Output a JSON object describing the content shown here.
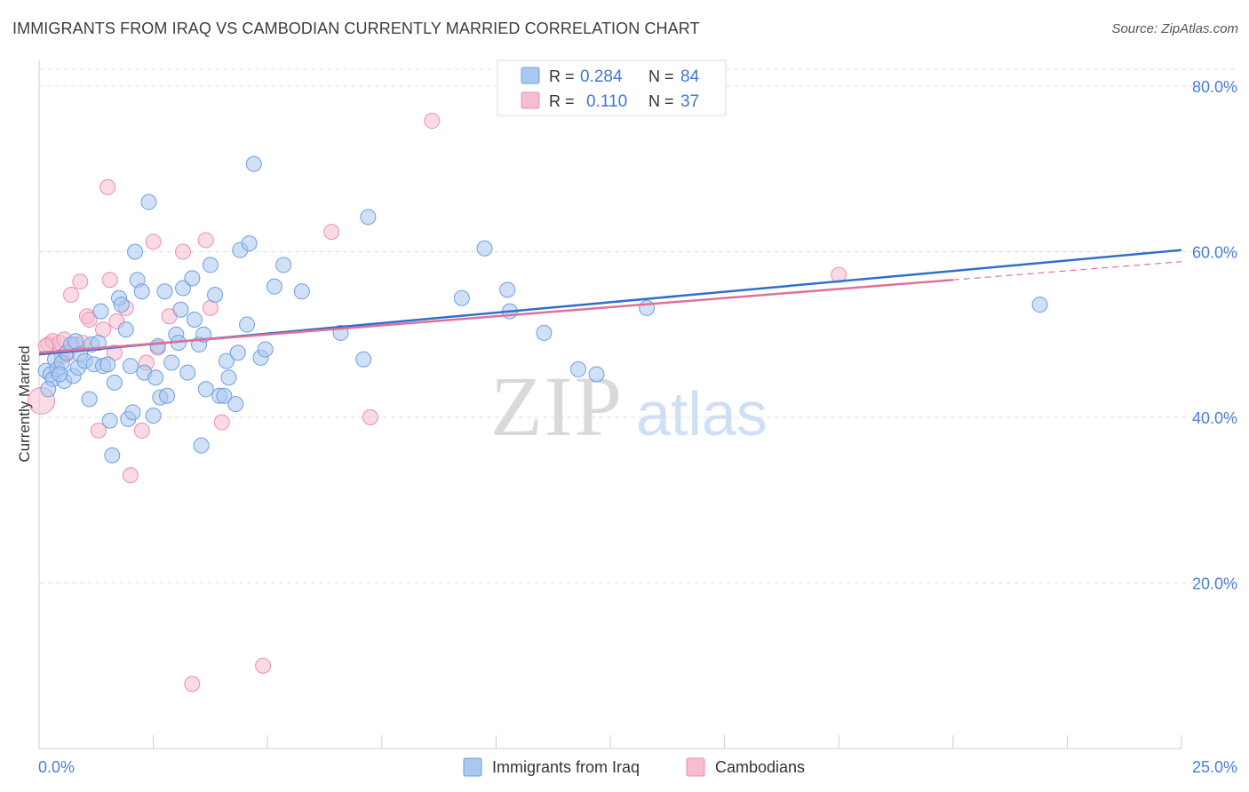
{
  "title": "IMMIGRANTS FROM IRAQ VS CAMBODIAN CURRENTLY MARRIED CORRELATION CHART",
  "source": "Source: ZipAtlas.com",
  "watermark": {
    "zip": "ZIP",
    "atlas": "atlas"
  },
  "colors": {
    "iraq_fill": "#a9c7f0",
    "iraq_stroke": "#6f9fe0",
    "iraq_line": "#2f6fcc",
    "cambodian_fill": "#f6bcd0",
    "cambodian_stroke": "#e891af",
    "cambodian_line": "#e0709a",
    "axis_text": "#4a7fd4",
    "grid": "#dddddd"
  },
  "legend": {
    "rows": [
      {
        "r_label": "R =",
        "r_value": "0.284",
        "n_label": "N =",
        "n_value": "84"
      },
      {
        "r_label": "R =",
        "r_value": "0.110",
        "n_label": "N =",
        "n_value": "37"
      }
    ]
  },
  "chart_data": {
    "type": "scatter",
    "title": "IMMIGRANTS FROM IRAQ VS CAMBODIAN CURRENTLY MARRIED CORRELATION CHART",
    "ylabel": "Currently Married",
    "xlabel": "",
    "xlim": [
      0,
      25
    ],
    "ylim": [
      0,
      82
    ],
    "x_ticks_labels": [
      "0.0%",
      "25.0%"
    ],
    "y_ticks": [
      20,
      40,
      60,
      80
    ],
    "y_tick_labels": [
      "20.0%",
      "40.0%",
      "60.0%",
      "80.0%"
    ],
    "grid": true,
    "legend_position": "top-center",
    "series": [
      {
        "name": "Immigrants from Iraq",
        "r": 0.284,
        "n": 84,
        "trend": {
          "x": [
            0,
            25
          ],
          "y": [
            47.6,
            60.2
          ]
        },
        "points": [
          [
            0.15,
            45.6
          ],
          [
            0.25,
            45.2
          ],
          [
            0.3,
            44.6
          ],
          [
            0.35,
            47.0
          ],
          [
            0.4,
            45.8
          ],
          [
            0.5,
            46.6
          ],
          [
            0.55,
            44.4
          ],
          [
            0.6,
            47.8
          ],
          [
            0.7,
            48.8
          ],
          [
            0.75,
            45.0
          ],
          [
            0.8,
            49.2
          ],
          [
            0.85,
            46.0
          ],
          [
            0.9,
            47.6
          ],
          [
            1.0,
            46.8
          ],
          [
            1.1,
            42.2
          ],
          [
            1.15,
            48.8
          ],
          [
            1.2,
            46.4
          ],
          [
            1.3,
            49.0
          ],
          [
            1.35,
            52.8
          ],
          [
            1.4,
            46.2
          ],
          [
            1.5,
            46.4
          ],
          [
            1.55,
            39.6
          ],
          [
            1.6,
            35.4
          ],
          [
            1.65,
            44.2
          ],
          [
            1.75,
            54.4
          ],
          [
            1.8,
            53.6
          ],
          [
            1.9,
            50.6
          ],
          [
            1.95,
            39.8
          ],
          [
            2.0,
            46.2
          ],
          [
            2.05,
            40.6
          ],
          [
            2.1,
            60.0
          ],
          [
            2.15,
            56.6
          ],
          [
            2.25,
            55.2
          ],
          [
            2.3,
            45.4
          ],
          [
            2.4,
            66.0
          ],
          [
            2.5,
            40.2
          ],
          [
            2.55,
            44.8
          ],
          [
            2.6,
            48.6
          ],
          [
            2.65,
            42.4
          ],
          [
            2.75,
            55.2
          ],
          [
            2.8,
            42.6
          ],
          [
            2.9,
            46.6
          ],
          [
            3.0,
            50.0
          ],
          [
            3.05,
            49.0
          ],
          [
            3.1,
            53.0
          ],
          [
            3.15,
            55.6
          ],
          [
            3.25,
            45.4
          ],
          [
            3.35,
            56.8
          ],
          [
            3.4,
            51.8
          ],
          [
            3.5,
            48.8
          ],
          [
            3.6,
            50.0
          ],
          [
            3.65,
            43.4
          ],
          [
            3.75,
            58.4
          ],
          [
            3.85,
            54.8
          ],
          [
            3.95,
            42.6
          ],
          [
            4.05,
            42.6
          ],
          [
            4.1,
            46.8
          ],
          [
            4.15,
            44.8
          ],
          [
            4.3,
            41.6
          ],
          [
            4.35,
            47.8
          ],
          [
            4.4,
            60.2
          ],
          [
            4.55,
            51.2
          ],
          [
            4.6,
            61.0
          ],
          [
            4.7,
            70.6
          ],
          [
            4.85,
            47.2
          ],
          [
            4.95,
            48.2
          ],
          [
            5.15,
            55.8
          ],
          [
            5.35,
            58.4
          ],
          [
            5.75,
            55.2
          ],
          [
            3.55,
            36.6
          ],
          [
            6.6,
            50.2
          ],
          [
            7.1,
            47.0
          ],
          [
            7.2,
            64.2
          ],
          [
            9.25,
            54.4
          ],
          [
            9.75,
            60.4
          ],
          [
            10.25,
            55.4
          ],
          [
            10.3,
            52.8
          ],
          [
            11.05,
            50.2
          ],
          [
            11.8,
            45.8
          ],
          [
            12.2,
            45.2
          ],
          [
            13.3,
            53.2
          ],
          [
            21.9,
            53.6
          ],
          [
            0.2,
            43.4
          ],
          [
            0.45,
            45.2
          ]
        ]
      },
      {
        "name": "Cambodians",
        "r": 0.11,
        "n": 37,
        "trend": {
          "x": [
            0,
            20
          ],
          "y": [
            47.8,
            56.6
          ],
          "dashed_extension": {
            "x": [
              20,
              25
            ],
            "y": [
              56.6,
              58.8
            ]
          }
        },
        "points": [
          [
            0.05,
            42.0
          ],
          [
            0.2,
            48.8
          ],
          [
            0.3,
            49.2
          ],
          [
            0.45,
            49.0
          ],
          [
            0.5,
            47.4
          ],
          [
            0.55,
            49.4
          ],
          [
            0.6,
            47.6
          ],
          [
            0.7,
            54.8
          ],
          [
            0.8,
            48.8
          ],
          [
            0.9,
            56.4
          ],
          [
            0.95,
            49.0
          ],
          [
            1.05,
            52.2
          ],
          [
            1.1,
            51.8
          ],
          [
            1.3,
            38.4
          ],
          [
            1.4,
            50.6
          ],
          [
            1.5,
            67.8
          ],
          [
            1.55,
            56.6
          ],
          [
            1.65,
            47.8
          ],
          [
            1.7,
            51.6
          ],
          [
            1.9,
            53.2
          ],
          [
            2.0,
            33.0
          ],
          [
            2.25,
            38.4
          ],
          [
            2.35,
            46.6
          ],
          [
            2.5,
            61.2
          ],
          [
            2.6,
            48.4
          ],
          [
            2.85,
            52.2
          ],
          [
            3.15,
            60.0
          ],
          [
            3.35,
            7.8
          ],
          [
            3.65,
            61.4
          ],
          [
            3.75,
            53.2
          ],
          [
            4.0,
            39.4
          ],
          [
            4.9,
            10.0
          ],
          [
            6.4,
            62.4
          ],
          [
            7.25,
            40.0
          ],
          [
            8.6,
            75.8
          ],
          [
            17.5,
            57.2
          ],
          [
            0.15,
            48.6
          ]
        ]
      }
    ]
  },
  "bottom_legend": [
    "Immigrants from Iraq",
    "Cambodians"
  ]
}
